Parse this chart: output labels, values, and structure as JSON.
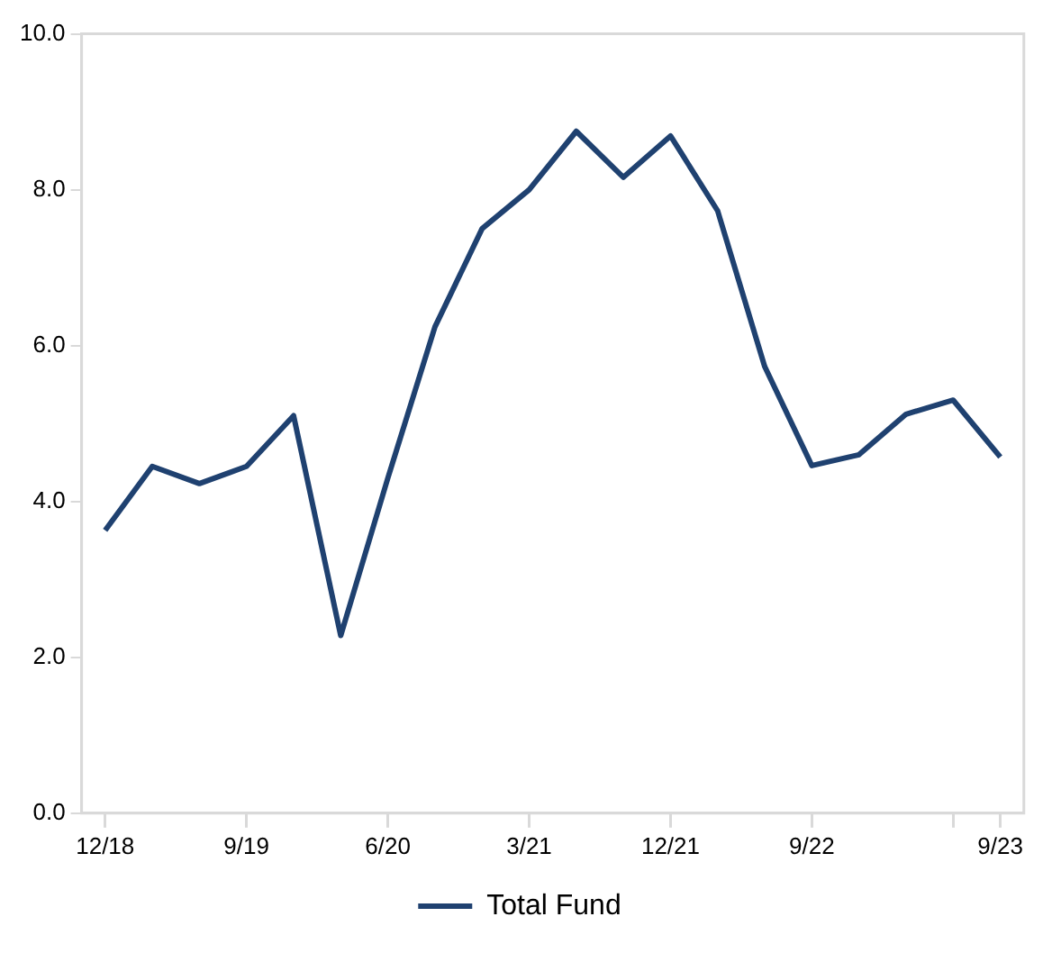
{
  "chart_data": {
    "type": "line",
    "categories": [
      "12/18",
      null,
      null,
      "9/19",
      null,
      null,
      "6/20",
      null,
      null,
      "3/21",
      null,
      null,
      "12/21",
      null,
      null,
      "9/22",
      null,
      null,
      null,
      "9/23"
    ],
    "series": [
      {
        "name": "Total Fund",
        "color": "#1f4170",
        "values": [
          3.63,
          4.45,
          4.23,
          4.45,
          5.1,
          2.28,
          4.3,
          6.24,
          7.5,
          8.0,
          8.75,
          8.16,
          8.69,
          7.73,
          5.73,
          4.46,
          4.6,
          5.12,
          5.3,
          4.57
        ]
      }
    ],
    "ylim": [
      0,
      10
    ],
    "yticks": [
      {
        "value": 0,
        "label": "0.0"
      },
      {
        "value": 2,
        "label": "2.0"
      },
      {
        "value": 4,
        "label": "4.0"
      },
      {
        "value": 6,
        "label": "6.0"
      },
      {
        "value": 8,
        "label": "8.0"
      },
      {
        "value": 10,
        "label": "10.0"
      }
    ],
    "grid": false,
    "legend": "bottom",
    "marker": "none",
    "line_style": "solid"
  }
}
